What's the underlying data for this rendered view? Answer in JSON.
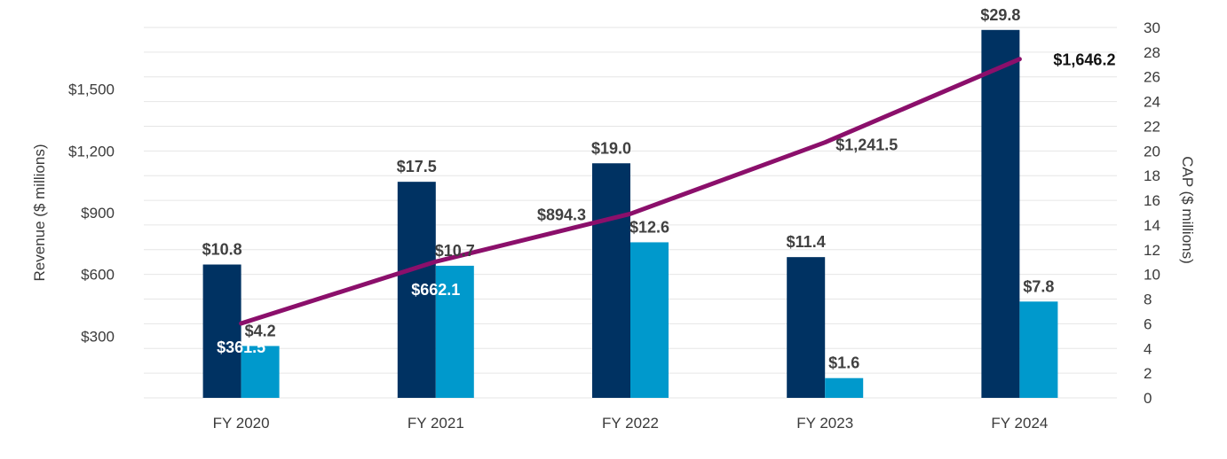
{
  "chart_data": {
    "type": "bar",
    "categories": [
      "FY 2020",
      "FY 2021",
      "FY 2022",
      "FY 2023",
      "FY 2024"
    ],
    "series": [
      {
        "kind": "bar",
        "axis": "right",
        "color": "#003262",
        "values": [
          10.8,
          17.5,
          19.0,
          11.4,
          29.8
        ],
        "labels": [
          "$10.8",
          "$17.5",
          "$19.0",
          "$11.4",
          "$29.8"
        ]
      },
      {
        "kind": "bar",
        "axis": "right",
        "color": "#0099cc",
        "values": [
          4.2,
          10.7,
          12.6,
          1.6,
          7.8
        ],
        "labels": [
          "$4.2",
          "$10.7",
          "$12.6",
          "$1.6",
          "$7.8"
        ]
      },
      {
        "kind": "line",
        "axis": "left",
        "color": "#8b0f6b",
        "values": [
          361.5,
          662.1,
          894.3,
          1241.5,
          1646.2
        ],
        "labels": [
          "$361.5",
          "$662.1",
          "$894.3",
          "$1,241.5",
          "$1,646.2"
        ]
      }
    ],
    "y_left": {
      "label": "Revenue ($ millions)",
      "ticks": [
        300,
        600,
        900,
        1200,
        1500
      ],
      "tick_labels": [
        "$300",
        "$600",
        "$900",
        "$1,200",
        "$1,500"
      ],
      "range": [
        0,
        1800
      ]
    },
    "y_right": {
      "label": "CAP ($ millions)",
      "ticks": [
        0,
        2,
        4,
        6,
        8,
        10,
        12,
        14,
        16,
        18,
        20,
        22,
        24,
        26,
        28,
        30
      ],
      "tick_labels": [
        "0",
        "2",
        "4",
        "6",
        "8",
        "10",
        "12",
        "14",
        "16",
        "18",
        "20",
        "22",
        "24",
        "26",
        "28",
        "30"
      ],
      "range": [
        0,
        30
      ]
    },
    "grid": true,
    "legend": "none"
  }
}
